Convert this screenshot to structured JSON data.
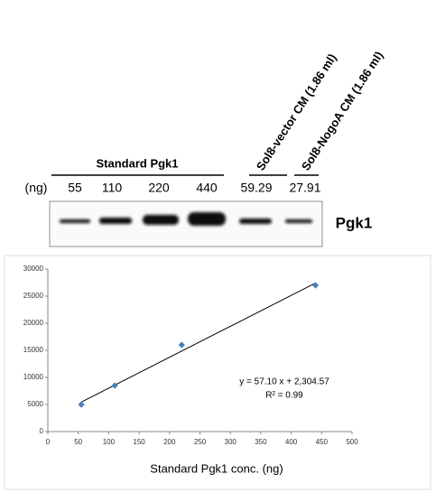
{
  "blot": {
    "group_label": "Standard Pgk1",
    "lane_labels": [
      "Sol8-vector CM (1.86 ml)",
      "Sol8-NogoA CM (1.86 ml)"
    ],
    "unit_label": "(ng)",
    "amounts": [
      "55",
      "110",
      "220",
      "440",
      "59.29",
      "27.91"
    ],
    "protein_label": "Pgk1"
  },
  "chart_data": {
    "type": "scatter",
    "x": [
      55,
      110,
      220,
      440
    ],
    "values": [
      5000,
      8500,
      16000,
      27000
    ],
    "color": "#4a7ebb",
    "xlim": [
      0,
      500
    ],
    "xticks": [
      0,
      50,
      100,
      150,
      200,
      250,
      300,
      350,
      400,
      450,
      500
    ],
    "ylim": [
      0,
      30000
    ],
    "yticks": [
      0,
      5000,
      10000,
      15000,
      20000,
      25000,
      30000
    ],
    "xlabel": "Standard Pgk1 conc. (ng)",
    "trendline": {
      "slope": 57.1,
      "intercept": 2304.57
    },
    "annotations": [
      "y = 57.10 x + 2,304.57",
      "R² = 0.99"
    ]
  }
}
